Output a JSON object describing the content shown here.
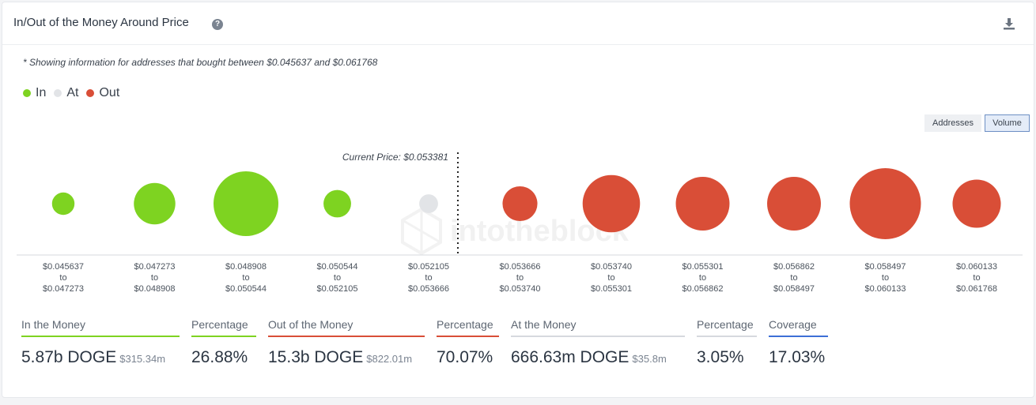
{
  "header": {
    "title": "In/Out of the Money Around Price",
    "help_icon": "?",
    "download_icon": "download-icon"
  },
  "note": "* Showing information for addresses that bought between $0.045637 and $0.061768",
  "legend": [
    {
      "label": "In",
      "color": "#7ed321"
    },
    {
      "label": "At",
      "color": "#e2e4e7"
    },
    {
      "label": "Out",
      "color": "#d94e37"
    }
  ],
  "toggle": {
    "addresses": "Addresses",
    "volume": "Volume"
  },
  "current_price_label": "Current Price: $0.053381",
  "watermark": "intotheblock",
  "chart_data": {
    "type": "scatter",
    "title": "In/Out of the Money Around Price",
    "current_price": 0.053381,
    "buckets": [
      {
        "from": "$0.045637",
        "to": "$0.047273",
        "status": "in",
        "relative_volume": 0.1
      },
      {
        "from": "$0.047273",
        "to": "$0.048908",
        "status": "in",
        "relative_volume": 0.34
      },
      {
        "from": "$0.048908",
        "to": "$0.050544",
        "status": "in",
        "relative_volume": 0.83
      },
      {
        "from": "$0.050544",
        "to": "$0.052105",
        "status": "in",
        "relative_volume": 0.15
      },
      {
        "from": "$0.052105",
        "to": "$0.053666",
        "status": "at",
        "relative_volume": 0.07
      },
      {
        "from": "$0.053666",
        "to": "$0.053740",
        "status": "out",
        "relative_volume": 0.24
      },
      {
        "from": "$0.053740",
        "to": "$0.055301",
        "status": "out",
        "relative_volume": 0.65
      },
      {
        "from": "$0.055301",
        "to": "$0.056862",
        "status": "out",
        "relative_volume": 0.57
      },
      {
        "from": "$0.056862",
        "to": "$0.058497",
        "status": "out",
        "relative_volume": 0.57
      },
      {
        "from": "$0.058497",
        "to": "$0.060133",
        "status": "out",
        "relative_volume": 1.0
      },
      {
        "from": "$0.060133",
        "to": "$0.061768",
        "status": "out",
        "relative_volume": 0.46
      }
    ],
    "range_connector": "to",
    "colors": {
      "in": "#7ed321",
      "at": "#e2e4e7",
      "out": "#d94e37"
    }
  },
  "stats": {
    "in_label": "In the Money",
    "in_value": "5.87b DOGE",
    "in_usd": "$315.34m",
    "in_pct_label": "Percentage",
    "in_pct": "26.88%",
    "out_label": "Out of the Money",
    "out_value": "15.3b DOGE",
    "out_usd": "$822.01m",
    "out_pct_label": "Percentage",
    "out_pct": "70.07%",
    "at_label": "At the Money",
    "at_value": "666.63m DOGE",
    "at_usd": "$35.8m",
    "at_pct_label": "Percentage",
    "at_pct": "3.05%",
    "cov_label": "Coverage",
    "cov_value": "17.03%"
  }
}
